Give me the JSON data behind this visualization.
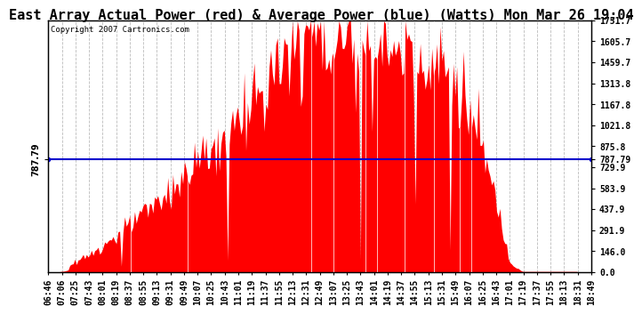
{
  "title": "East Array Actual Power (red) & Average Power (blue) (Watts) Mon Mar 26 19:04",
  "copyright": "Copyright 2007 Cartronics.com",
  "y_right_ticks": [
    0.0,
    146.0,
    291.9,
    437.9,
    583.9,
    729.9,
    875.8,
    1021.8,
    1167.8,
    1313.8,
    1459.7,
    1605.7,
    1751.7
  ],
  "average_power": 787.79,
  "ymax": 1751.7,
  "ymin": 0.0,
  "fill_color": "#FF0000",
  "line_color": "#0000CC",
  "background_color": "#FFFFFF",
  "grid_color": "#BBBBBB",
  "x_labels": [
    "06:46",
    "07:06",
    "07:25",
    "07:43",
    "08:01",
    "08:19",
    "08:37",
    "08:55",
    "09:13",
    "09:31",
    "09:49",
    "10:07",
    "10:25",
    "10:43",
    "11:01",
    "11:19",
    "11:37",
    "11:55",
    "12:13",
    "12:31",
    "12:49",
    "13:07",
    "13:25",
    "13:43",
    "14:01",
    "14:19",
    "14:37",
    "14:55",
    "15:13",
    "15:31",
    "15:49",
    "16:07",
    "16:25",
    "16:43",
    "17:01",
    "17:19",
    "17:37",
    "17:55",
    "18:13",
    "18:31",
    "18:49"
  ],
  "title_fontsize": 11,
  "tick_fontsize": 7,
  "copyright_fontsize": 6.5
}
